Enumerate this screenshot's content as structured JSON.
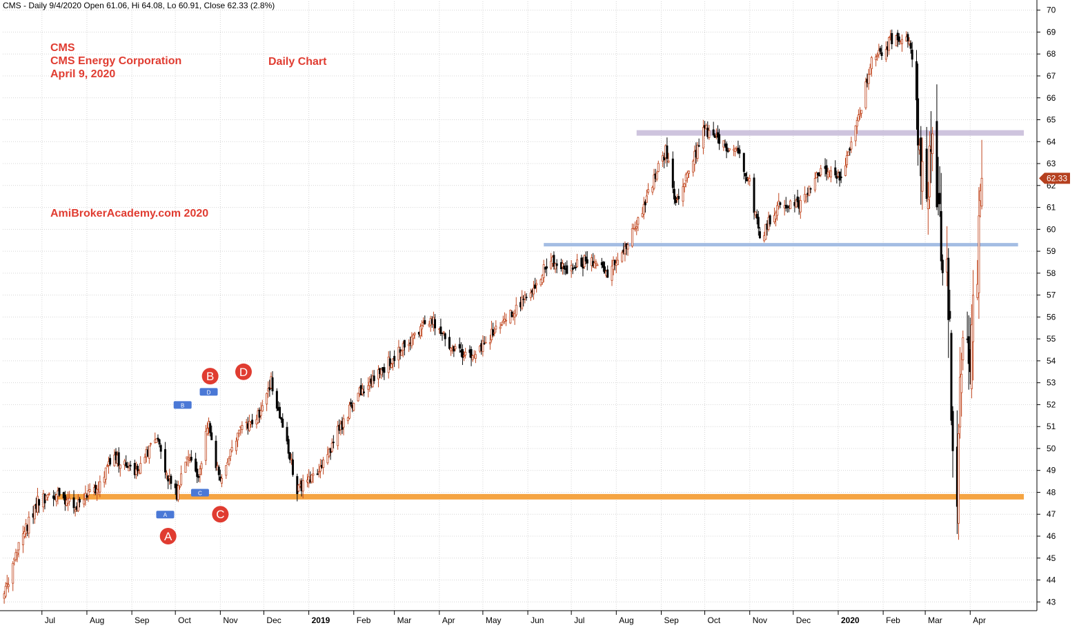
{
  "header": {
    "text": "CMS - Daily 9/4/2020 Open 61.06, Hi 64.08, Lo 60.91, Close 62.33 (2.8%)"
  },
  "annotations": {
    "ticker": "CMS",
    "company": "CMS Energy Corporation",
    "date": "April 9, 2020",
    "chart_kind": "Daily Chart",
    "site": "AmiBrokerAcademy.com   2020"
  },
  "pattern_labels": {
    "large": [
      "A",
      "B",
      "C",
      "D"
    ],
    "small": [
      "A",
      "B",
      "C",
      "D"
    ]
  },
  "price_tag": "62.33",
  "colors": {
    "up_candle": "#c0451d",
    "down_candle": "#000000",
    "annotation_text": "#e03c31",
    "support_line": "#f59b2e",
    "mid_line": "#9bb6e0",
    "resistance_line": "#c9bedb",
    "price_tag": "#b5401f",
    "small_label": "#4a78d6",
    "grid": "#d4d4d4"
  },
  "chart_data": {
    "type": "candlestick",
    "interval": "daily",
    "y_range": [
      42.6,
      70.4
    ],
    "y_ticks": [
      43,
      44,
      45,
      46,
      47,
      48,
      49,
      50,
      51,
      52,
      53,
      54,
      55,
      56,
      57,
      58,
      59,
      60,
      61,
      62,
      63,
      64,
      65,
      66,
      67,
      68,
      69,
      70
    ],
    "x_labels": [
      {
        "label": "Jul",
        "date": "2018-07"
      },
      {
        "label": "Aug",
        "date": "2018-08"
      },
      {
        "label": "Sep",
        "date": "2018-09"
      },
      {
        "label": "Oct",
        "date": "2018-10"
      },
      {
        "label": "Nov",
        "date": "2018-11"
      },
      {
        "label": "Dec",
        "date": "2018-12"
      },
      {
        "label": "2019",
        "date": "2019-01",
        "bold": true
      },
      {
        "label": "Feb",
        "date": "2019-02"
      },
      {
        "label": "Mar",
        "date": "2019-03"
      },
      {
        "label": "Apr",
        "date": "2019-04"
      },
      {
        "label": "May",
        "date": "2019-05"
      },
      {
        "label": "Jun",
        "date": "2019-06"
      },
      {
        "label": "Jul",
        "date": "2019-07"
      },
      {
        "label": "Aug",
        "date": "2019-08"
      },
      {
        "label": "Sep",
        "date": "2019-09"
      },
      {
        "label": "Oct",
        "date": "2019-10"
      },
      {
        "label": "Nov",
        "date": "2019-11"
      },
      {
        "label": "Dec",
        "date": "2019-12"
      },
      {
        "label": "2020",
        "date": "2020-01",
        "bold": true
      },
      {
        "label": "Feb",
        "date": "2020-02"
      },
      {
        "label": "Mar",
        "date": "2020-03"
      },
      {
        "label": "Apr",
        "date": "2020-04"
      }
    ],
    "close_path": [
      {
        "date": "2018-06-05",
        "close": 43.3
      },
      {
        "date": "2018-06-15",
        "close": 45.5
      },
      {
        "date": "2018-06-28",
        "close": 47.6
      },
      {
        "date": "2018-07-10",
        "close": 47.9
      },
      {
        "date": "2018-07-24",
        "close": 47.3
      },
      {
        "date": "2018-08-07",
        "close": 48.2
      },
      {
        "date": "2018-08-20",
        "close": 49.6
      },
      {
        "date": "2018-09-05",
        "close": 48.9
      },
      {
        "date": "2018-09-18",
        "close": 50.6
      },
      {
        "date": "2018-09-26",
        "close": 48.6
      },
      {
        "date": "2018-10-02",
        "close": 47.9
      },
      {
        "date": "2018-10-09",
        "close": 49.7
      },
      {
        "date": "2018-10-16",
        "close": 48.6
      },
      {
        "date": "2018-10-24",
        "close": 51.2
      },
      {
        "date": "2018-11-01",
        "close": 48.3
      },
      {
        "date": "2018-11-12",
        "close": 50.6
      },
      {
        "date": "2018-11-26",
        "close": 51.3
      },
      {
        "date": "2018-12-06",
        "close": 53.1
      },
      {
        "date": "2018-12-13",
        "close": 51.3
      },
      {
        "date": "2018-12-24",
        "close": 48.1
      },
      {
        "date": "2019-01-08",
        "close": 48.8
      },
      {
        "date": "2019-01-22",
        "close": 50.9
      },
      {
        "date": "2019-02-05",
        "close": 52.6
      },
      {
        "date": "2019-02-20",
        "close": 53.6
      },
      {
        "date": "2019-03-06",
        "close": 54.6
      },
      {
        "date": "2019-03-26",
        "close": 56.0
      },
      {
        "date": "2019-04-05",
        "close": 55.0
      },
      {
        "date": "2019-04-20",
        "close": 54.1
      },
      {
        "date": "2019-05-06",
        "close": 55.1
      },
      {
        "date": "2019-05-20",
        "close": 56.1
      },
      {
        "date": "2019-06-04",
        "close": 57.4
      },
      {
        "date": "2019-06-17",
        "close": 58.6
      },
      {
        "date": "2019-06-28",
        "close": 58.1
      },
      {
        "date": "2019-07-12",
        "close": 58.6
      },
      {
        "date": "2019-07-26",
        "close": 58.0
      },
      {
        "date": "2019-08-07",
        "close": 59.0
      },
      {
        "date": "2019-08-20",
        "close": 61.1
      },
      {
        "date": "2019-09-04",
        "close": 63.6
      },
      {
        "date": "2019-09-11",
        "close": 61.1
      },
      {
        "date": "2019-09-20",
        "close": 62.6
      },
      {
        "date": "2019-10-01",
        "close": 64.6
      },
      {
        "date": "2019-10-11",
        "close": 63.9
      },
      {
        "date": "2019-10-24",
        "close": 63.6
      },
      {
        "date": "2019-11-01",
        "close": 62.1
      },
      {
        "date": "2019-11-08",
        "close": 59.6
      },
      {
        "date": "2019-11-20",
        "close": 61.1
      },
      {
        "date": "2019-12-05",
        "close": 61.1
      },
      {
        "date": "2019-12-18",
        "close": 62.6
      },
      {
        "date": "2020-01-02",
        "close": 62.3
      },
      {
        "date": "2020-01-13",
        "close": 64.6
      },
      {
        "date": "2020-01-24",
        "close": 67.6
      },
      {
        "date": "2020-02-06",
        "close": 68.6
      },
      {
        "date": "2020-02-14",
        "close": 68.9
      },
      {
        "date": "2020-02-20",
        "close": 68.4
      },
      {
        "date": "2020-02-26",
        "close": 63.1
      },
      {
        "date": "2020-03-02",
        "close": 60.6
      },
      {
        "date": "2020-03-06",
        "close": 64.6
      },
      {
        "date": "2020-03-11",
        "close": 60.1
      },
      {
        "date": "2020-03-17",
        "close": 57.1
      },
      {
        "date": "2020-03-20",
        "close": 50.1
      },
      {
        "date": "2020-03-23",
        "close": 48.6
      },
      {
        "date": "2020-03-27",
        "close": 55.6
      },
      {
        "date": "2020-04-01",
        "close": 54.6
      },
      {
        "date": "2020-04-06",
        "close": 58.1
      },
      {
        "date": "2020-04-09",
        "close": 62.33
      }
    ],
    "last": {
      "date": "2020-04-09",
      "open": 61.06,
      "high": 64.08,
      "low": 60.91,
      "close": 62.33
    },
    "horizontal_lines": [
      {
        "name": "support",
        "price": 47.8,
        "from": "2018-07-10",
        "to": "2020-05-08"
      },
      {
        "name": "mid",
        "price": 59.3,
        "from": "2019-06-12",
        "to": "2020-05-04"
      },
      {
        "name": "resistance",
        "price": 64.4,
        "from": "2019-08-15",
        "to": "2020-05-08"
      }
    ],
    "markers": [
      {
        "label": "A",
        "date": "2018-09-26",
        "price": 46.0,
        "kind": "large"
      },
      {
        "label": "B",
        "date": "2018-10-25",
        "price": 53.3,
        "kind": "large"
      },
      {
        "label": "C",
        "date": "2018-11-01",
        "price": 47.0,
        "kind": "large"
      },
      {
        "label": "D",
        "date": "2018-11-17",
        "price": 53.5,
        "kind": "large"
      },
      {
        "label": "A",
        "date": "2018-09-24",
        "price": 47.0,
        "kind": "small"
      },
      {
        "label": "B",
        "date": "2018-10-06",
        "price": 52.0,
        "kind": "small"
      },
      {
        "label": "C",
        "date": "2018-10-18",
        "price": 48.0,
        "kind": "small"
      },
      {
        "label": "D",
        "date": "2018-10-24",
        "price": 52.6,
        "kind": "small"
      }
    ]
  }
}
